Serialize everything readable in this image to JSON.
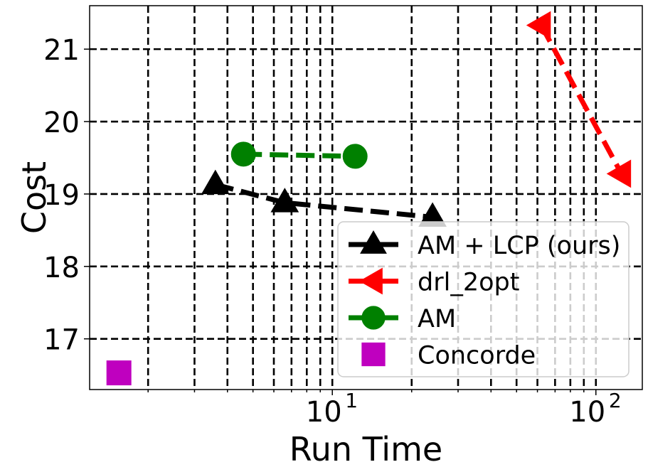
{
  "chart_data": {
    "type": "scatter",
    "title": "",
    "xlabel": "Run Time",
    "ylabel": "Cost",
    "xscale": "log",
    "xlim": [
      1.2,
      150
    ],
    "ylim": [
      16.3,
      21.6
    ],
    "grid": true,
    "grid_style": "dashed",
    "x_ticks": [
      {
        "value": 10,
        "base": "10",
        "exp": "1"
      },
      {
        "value": 100,
        "base": "10",
        "exp": "2"
      }
    ],
    "y_ticks": [
      {
        "value": 17,
        "label": "17"
      },
      {
        "value": 18,
        "label": "18"
      },
      {
        "value": 19,
        "label": "19"
      },
      {
        "value": 20,
        "label": "20"
      },
      {
        "value": 21,
        "label": "21"
      }
    ],
    "legend_position": "bottom-right",
    "series": [
      {
        "name": "AM + LCP (ours)",
        "color": "#000000",
        "marker": "triangle-up",
        "x": [
          3.6,
          6.6,
          24
        ],
        "y": [
          19.13,
          18.88,
          18.68
        ]
      },
      {
        "name": "drl_2opt",
        "color": "#ff0000",
        "marker": "triangle-left",
        "x": [
          62,
          125
        ],
        "y": [
          21.33,
          19.28
        ]
      },
      {
        "name": "AM",
        "color": "#008000",
        "marker": "circle",
        "x": [
          4.6,
          12.2
        ],
        "y": [
          19.55,
          19.52
        ]
      },
      {
        "name": "Concorde",
        "color": "#bf00bf",
        "marker": "square",
        "x": [
          1.55
        ],
        "y": [
          16.53
        ]
      }
    ]
  }
}
